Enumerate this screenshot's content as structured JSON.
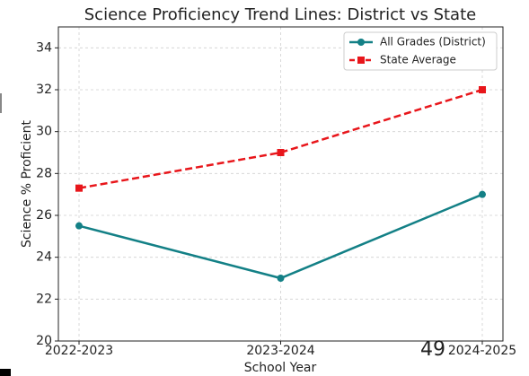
{
  "chart_data": {
    "type": "line",
    "title": "Science Proficiency Trend Lines: District vs State",
    "x_label": "School Year",
    "y_label": "Science % Proficient",
    "categories": [
      "2022-2023",
      "2023-2024",
      "2024-2025"
    ],
    "series": [
      {
        "name": "All Grades (District)",
        "color": "#138086",
        "marker": "circle",
        "dash": "solid",
        "values": [
          25.5,
          23,
          27
        ]
      },
      {
        "name": "State Average",
        "color": "#e8161b",
        "marker": "square",
        "dash": "dashed",
        "values": [
          27.3,
          29,
          32
        ]
      }
    ],
    "ylim": [
      20,
      35
    ],
    "yticks": [
      20,
      22,
      24,
      26,
      28,
      30,
      32,
      34
    ],
    "grid": true,
    "legend": "upper right",
    "annotation": "49"
  }
}
